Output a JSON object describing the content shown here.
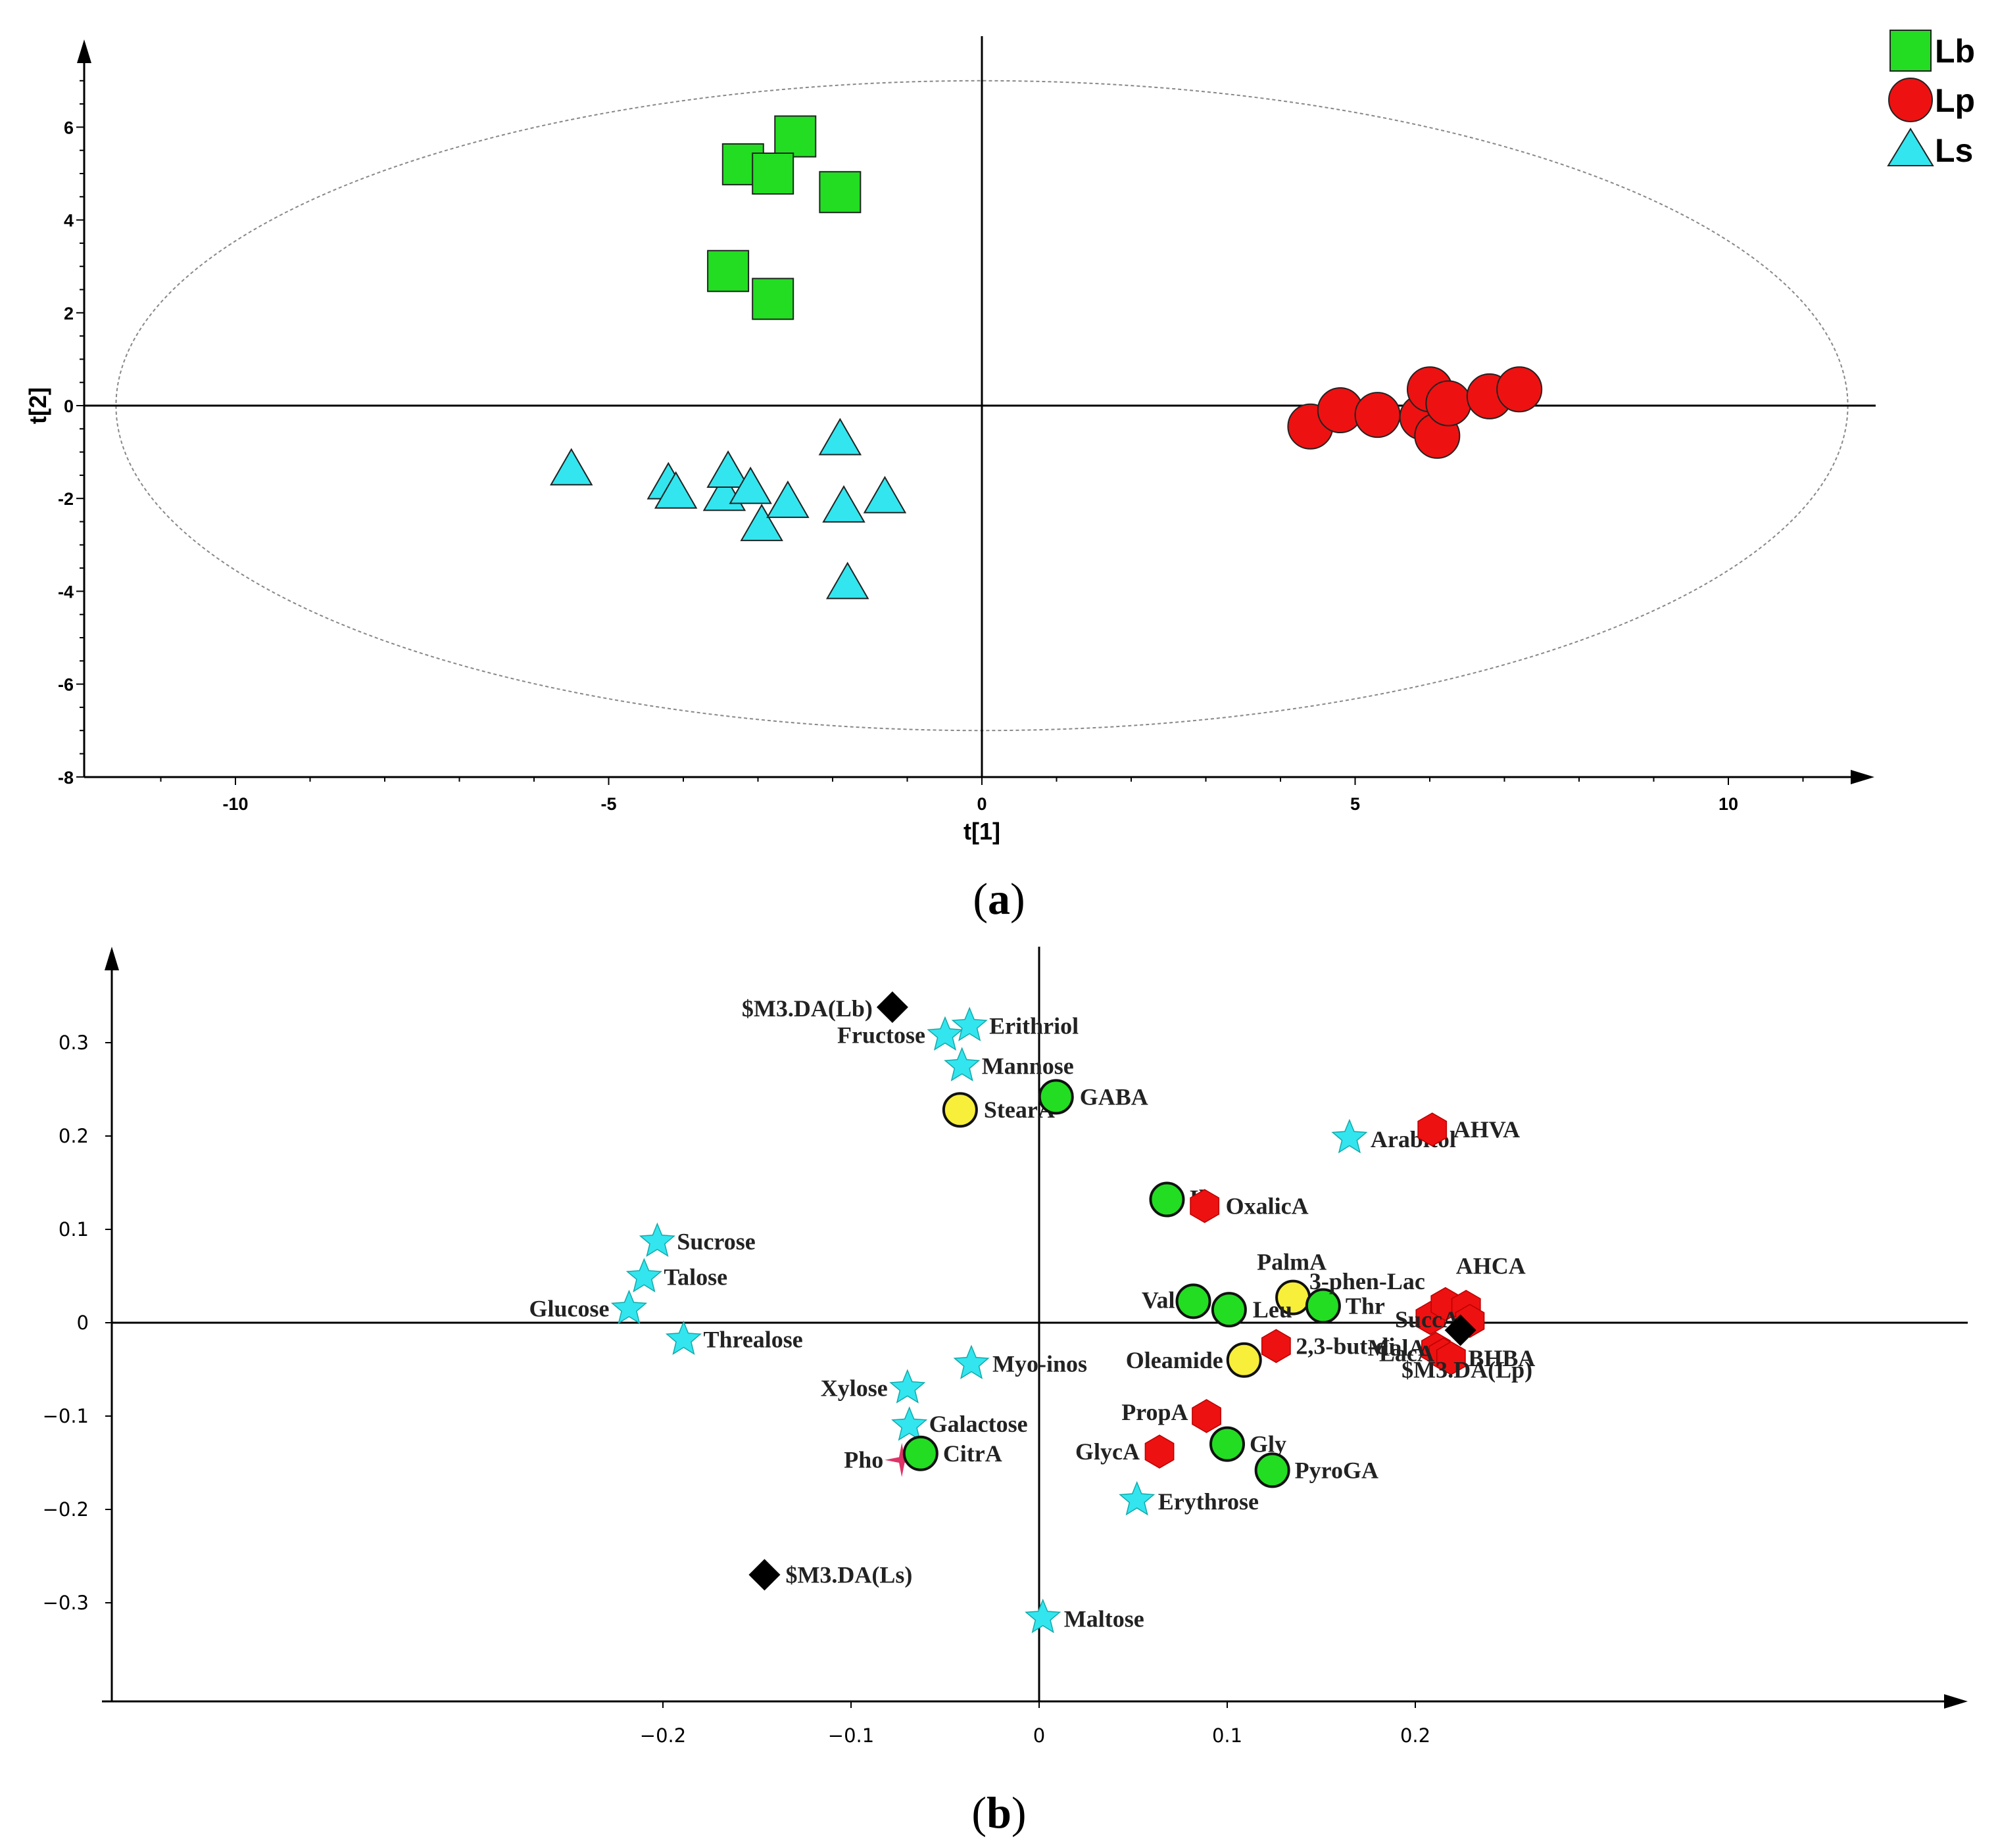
{
  "figure": {
    "panel_a_label": "(a)",
    "panel_a_letter": "a",
    "panel_b_label": "(b)",
    "panel_b_letter": "b"
  },
  "colors": {
    "Lb": "#22dd22",
    "Lp": "#ee1111",
    "Ls": "#33e5ee",
    "lp_marker": "#ee1111",
    "yellow": "#f7ef3a",
    "black": "#000000",
    "pink": "#dd3366"
  },
  "chart_data": [
    {
      "type": "scatter",
      "title": "",
      "xlabel": "t[1]",
      "ylabel": "t[2]",
      "xlim": [
        -12,
        12
      ],
      "ylim": [
        -8,
        7.5
      ],
      "xticks": [
        -10,
        -5,
        0,
        5,
        10
      ],
      "yticks": [
        6,
        4,
        2,
        0,
        -2,
        -4,
        -6,
        -8
      ],
      "grid": false,
      "legend_position": "top-right",
      "ellipse": {
        "cx": 0,
        "cy": 0,
        "rx": 11.6,
        "ry": 7.0
      },
      "series": [
        {
          "name": "Lb",
          "marker": "square",
          "points": [
            [
              -2.5,
              5.8
            ],
            [
              -3.2,
              5.2
            ],
            [
              -2.8,
              5.0
            ],
            [
              -1.9,
              4.6
            ],
            [
              -3.4,
              2.9
            ],
            [
              -2.8,
              2.3
            ]
          ]
        },
        {
          "name": "Lp",
          "marker": "circle",
          "points": [
            [
              4.4,
              -0.45
            ],
            [
              4.8,
              -0.1
            ],
            [
              5.3,
              -0.2
            ],
            [
              5.9,
              -0.25
            ],
            [
              6.0,
              0.35
            ],
            [
              6.1,
              -0.65
            ],
            [
              6.25,
              0.05
            ],
            [
              6.8,
              0.2
            ],
            [
              7.2,
              0.35
            ]
          ]
        },
        {
          "name": "Ls",
          "marker": "triangle",
          "points": [
            [
              -5.5,
              -1.4
            ],
            [
              -4.2,
              -1.7
            ],
            [
              -4.1,
              -1.9
            ],
            [
              -3.45,
              -1.95
            ],
            [
              -3.4,
              -1.45
            ],
            [
              -3.1,
              -1.8
            ],
            [
              -2.95,
              -2.6
            ],
            [
              -2.6,
              -2.1
            ],
            [
              -1.9,
              -0.75
            ],
            [
              -1.85,
              -2.2
            ],
            [
              -1.8,
              -3.85
            ],
            [
              -1.3,
              -2.0
            ]
          ]
        }
      ]
    },
    {
      "type": "scatter",
      "title": "",
      "xlabel": "",
      "ylabel": "",
      "xlim": [
        -0.25,
        0.25
      ],
      "ylim": [
        -0.4,
        0.4
      ],
      "xticks": [
        -0.2,
        -0.1,
        0,
        0.1,
        0.2
      ],
      "xtick_labels": [
        "−0.2",
        "−0.1",
        "0",
        "0.1",
        "0.2"
      ],
      "yticks": [
        0.3,
        0.2,
        0.1,
        0,
        -0.1,
        -0.2,
        -0.3
      ],
      "ytick_labels": [
        "0.3",
        "0.2",
        "0.1",
        "0",
        "−0.1",
        "−0.2",
        "−0.3"
      ],
      "grid": false,
      "points": [
        {
          "label": "$M3.DA(Lb)",
          "x": -0.078,
          "y": 0.338,
          "marker": "diamond",
          "color": "black"
        },
        {
          "label": "Fructose",
          "x": -0.05,
          "y": 0.308,
          "marker": "star",
          "color": "Ls"
        },
        {
          "label": "Erithriol",
          "x": -0.037,
          "y": 0.318,
          "marker": "star",
          "color": "Ls"
        },
        {
          "label": "Mannose",
          "x": -0.041,
          "y": 0.275,
          "marker": "star",
          "color": "Ls"
        },
        {
          "label": "StearA",
          "x": -0.042,
          "y": 0.228,
          "marker": "circle",
          "color": "yellow"
        },
        {
          "label": "GABA",
          "x": 0.009,
          "y": 0.242,
          "marker": "circle",
          "color": "Lb"
        },
        {
          "label": "Arabitol",
          "x": 0.165,
          "y": 0.198,
          "marker": "star",
          "color": "Ls"
        },
        {
          "label": "AHVA",
          "x": 0.209,
          "y": 0.207,
          "marker": "hexagon",
          "color": "lp_marker"
        },
        {
          "label": "Ile",
          "x": 0.068,
          "y": 0.132,
          "marker": "circle",
          "color": "Lb"
        },
        {
          "label": "OxalicA",
          "x": 0.088,
          "y": 0.125,
          "marker": "hexagon",
          "color": "lp_marker"
        },
        {
          "label": "Sucrose",
          "x": -0.203,
          "y": 0.087,
          "marker": "star",
          "color": "Ls"
        },
        {
          "label": "Talose",
          "x": -0.21,
          "y": 0.049,
          "marker": "star",
          "color": "Ls"
        },
        {
          "label": "Glucose",
          "x": -0.218,
          "y": 0.015,
          "marker": "star",
          "color": "Ls"
        },
        {
          "label": "Threalose",
          "x": -0.189,
          "y": -0.018,
          "marker": "star",
          "color": "Ls"
        },
        {
          "label": "PalmA",
          "x": 0.135,
          "y": 0.027,
          "marker": "circle",
          "color": "yellow"
        },
        {
          "label": "Val",
          "x": 0.082,
          "y": 0.023,
          "marker": "circle",
          "color": "Lb"
        },
        {
          "label": "Leu",
          "x": 0.101,
          "y": 0.014,
          "marker": "circle",
          "color": "Lb"
        },
        {
          "label": "Thr",
          "x": 0.151,
          "y": 0.018,
          "marker": "circle",
          "color": "Lb"
        },
        {
          "label": "2,3-but-di",
          "x": 0.126,
          "y": -0.025,
          "marker": "hexagon",
          "color": "lp_marker"
        },
        {
          "label": "Oleamide",
          "x": 0.109,
          "y": -0.04,
          "marker": "circle",
          "color": "yellow"
        },
        {
          "label": "3-phen-Lac",
          "x": 0.208,
          "y": 0.005,
          "marker": "hexagon",
          "color": "lp_marker"
        },
        {
          "label": "AHCA",
          "x": 0.216,
          "y": 0.02,
          "marker": "hexagon",
          "color": "lp_marker"
        },
        {
          "label": "",
          "x": 0.227,
          "y": 0.017,
          "marker": "hexagon",
          "color": "lp_marker"
        },
        {
          "label": "SuccA",
          "x": 0.229,
          "y": 0.002,
          "marker": "hexagon",
          "color": "lp_marker"
        },
        {
          "label": "MalA",
          "x": 0.211,
          "y": -0.028,
          "marker": "hexagon",
          "color": "lp_marker"
        },
        {
          "label": "LacA",
          "x": 0.215,
          "y": -0.034,
          "marker": "hexagon",
          "color": "lp_marker"
        },
        {
          "label": "BHBA",
          "x": 0.219,
          "y": -0.038,
          "marker": "hexagon",
          "color": "lp_marker"
        },
        {
          "label": "$M3.DA(Lp)",
          "x": 0.224,
          "y": -0.008,
          "marker": "diamond",
          "color": "black"
        },
        {
          "label": "Myo-inos",
          "x": -0.036,
          "y": -0.044,
          "marker": "star",
          "color": "Ls"
        },
        {
          "label": "Xylose",
          "x": -0.07,
          "y": -0.07,
          "marker": "star",
          "color": "Ls"
        },
        {
          "label": "Galactose",
          "x": -0.069,
          "y": -0.11,
          "marker": "star",
          "color": "Ls"
        },
        {
          "label": "Pho",
          "x": -0.073,
          "y": -0.147,
          "marker": "sparkle",
          "color": "pink"
        },
        {
          "label": "CitrA",
          "x": -0.063,
          "y": -0.14,
          "marker": "circle",
          "color": "Lb"
        },
        {
          "label": "PropA",
          "x": 0.089,
          "y": -0.1,
          "marker": "hexagon",
          "color": "lp_marker"
        },
        {
          "label": "GlycA",
          "x": 0.064,
          "y": -0.138,
          "marker": "hexagon",
          "color": "lp_marker"
        },
        {
          "label": "Gly",
          "x": 0.1,
          "y": -0.13,
          "marker": "circle",
          "color": "Lb"
        },
        {
          "label": "PyroGA",
          "x": 0.124,
          "y": -0.158,
          "marker": "circle",
          "color": "Lb"
        },
        {
          "label": "Erythrose",
          "x": 0.052,
          "y": -0.19,
          "marker": "star",
          "color": "Ls"
        },
        {
          "label": "$M3.DA(Ls)",
          "x": -0.146,
          "y": -0.27,
          "marker": "diamond",
          "color": "black"
        },
        {
          "label": "Maltose",
          "x": 0.002,
          "y": -0.316,
          "marker": "star",
          "color": "Ls"
        }
      ]
    }
  ]
}
